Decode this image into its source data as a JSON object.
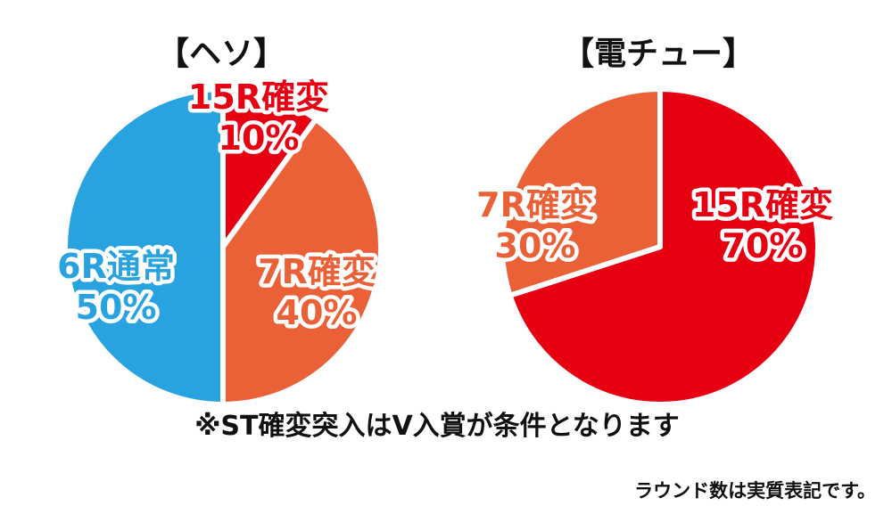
{
  "chart_data": [
    {
      "type": "pie",
      "title": "【ヘソ】",
      "start_angle": -90,
      "slices": [
        {
          "label": "15R確変",
          "value": 10,
          "value_label": "10%",
          "color": "#e60012"
        },
        {
          "label": "7R確変",
          "value": 40,
          "value_label": "40%",
          "color": "#ea6138"
        },
        {
          "label": "6R通常",
          "value": 50,
          "value_label": "50%",
          "color": "#29a3e0"
        }
      ]
    },
    {
      "type": "pie",
      "title": "【電チュー】",
      "start_angle": -90,
      "slices": [
        {
          "label": "15R確変",
          "value": 70,
          "value_label": "70%",
          "color": "#e60012"
        },
        {
          "label": "7R確変",
          "value": 30,
          "value_label": "30%",
          "color": "#ea6138"
        }
      ]
    }
  ],
  "notes": {
    "main": "※ST確変突入はV入賞が条件となります",
    "sub": "ラウンド数は実質表記です。"
  }
}
